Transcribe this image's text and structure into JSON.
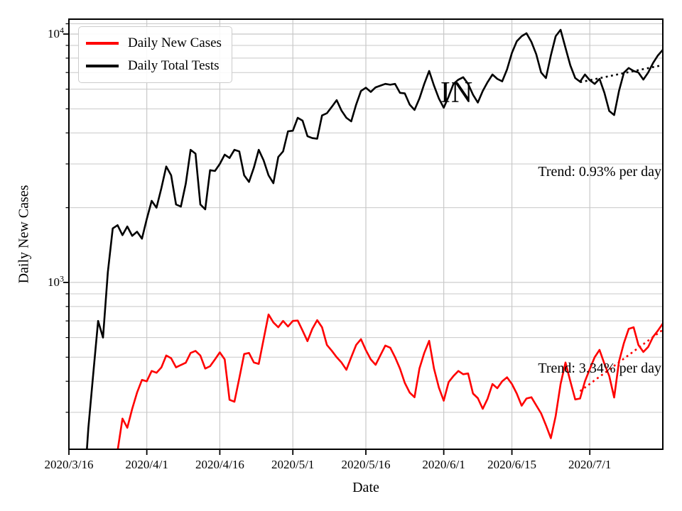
{
  "figure": {
    "state_label": "IN",
    "xlabel": "Date",
    "ylabel": "Daily New Cases",
    "background": "#ffffff",
    "legend": {
      "items": [
        {
          "label": "Daily New Cases",
          "color": "#ff0000"
        },
        {
          "label": "Daily Total Tests",
          "color": "#000000"
        }
      ]
    },
    "annotations": [
      {
        "id": "tests-trend",
        "text": "Trend: 0.93% per day"
      },
      {
        "id": "cases-trend",
        "text": "Trend: 3.34% per day"
      }
    ]
  },
  "chart_data": {
    "type": "line",
    "yscale": "log",
    "ylim": [
      213,
      11480
    ],
    "days_total": 122,
    "grid_color": "#c8c8c8",
    "x_ticks": [
      {
        "day": 0,
        "label": "2020/3/16"
      },
      {
        "day": 16,
        "label": "2020/4/1"
      },
      {
        "day": 31,
        "label": "2020/4/16"
      },
      {
        "day": 46,
        "label": "2020/5/1"
      },
      {
        "day": 61,
        "label": "2020/5/16"
      },
      {
        "day": 77,
        "label": "2020/6/1"
      },
      {
        "day": 91,
        "label": "2020/6/15"
      },
      {
        "day": 107,
        "label": "2020/7/1"
      }
    ],
    "y_major_ticks": [
      {
        "value": 1000,
        "base": "10",
        "exp": "3"
      },
      {
        "value": 10000,
        "base": "10",
        "exp": "4"
      }
    ],
    "y_minor_values": [
      300,
      400,
      500,
      600,
      700,
      800,
      900,
      2000,
      3000,
      4000,
      5000,
      6000,
      7000,
      8000,
      9000,
      11000
    ],
    "series": [
      {
        "name": "Daily New Cases",
        "color": "#ff0000",
        "start_day": 10,
        "values": [
          210,
          283,
          260,
          310,
          360,
          405,
          400,
          440,
          433,
          455,
          508,
          495,
          455,
          465,
          475,
          520,
          530,
          508,
          450,
          460,
          490,
          523,
          490,
          337,
          331,
          411,
          515,
          520,
          476,
          470,
          591,
          743,
          690,
          660,
          700,
          665,
          700,
          702,
          640,
          580,
          650,
          705,
          660,
          560,
          531,
          500,
          476,
          445,
          500,
          560,
          591,
          534,
          490,
          466,
          510,
          557,
          546,
          500,
          450,
          394,
          360,
          345,
          450,
          520,
          582,
          450,
          377,
          334,
          397,
          420,
          440,
          427,
          430,
          357,
          342,
          310,
          340,
          390,
          375,
          400,
          415,
          390,
          357,
          319,
          341,
          345,
          320,
          297,
          266,
          236,
          290,
          390,
          476,
          400,
          338,
          341,
          400,
          448,
          500,
          535,
          470,
          420,
          344,
          480,
          570,
          650,
          660,
          560,
          525,
          550,
          604,
          640,
          683
        ]
      },
      {
        "name": "Daily Total Tests",
        "color": "#000000",
        "start_day": 3,
        "values": [
          135,
          260,
          430,
          700,
          600,
          1100,
          1650,
          1700,
          1550,
          1680,
          1540,
          1600,
          1500,
          1800,
          2130,
          2000,
          2400,
          2930,
          2700,
          2060,
          2020,
          2500,
          3420,
          3300,
          2060,
          1970,
          2830,
          2810,
          3000,
          3270,
          3170,
          3420,
          3370,
          2700,
          2540,
          2900,
          3420,
          3100,
          2700,
          2510,
          3200,
          3370,
          4060,
          4080,
          4600,
          4480,
          3880,
          3810,
          3790,
          4700,
          4800,
          5090,
          5420,
          4920,
          4600,
          4450,
          5200,
          5900,
          6080,
          5850,
          6100,
          6200,
          6300,
          6250,
          6300,
          5800,
          5770,
          5200,
          4950,
          5500,
          6300,
          7100,
          6200,
          5500,
          5050,
          5600,
          6300,
          6550,
          6700,
          6300,
          5700,
          5300,
          5900,
          6400,
          6870,
          6600,
          6450,
          7200,
          8400,
          9350,
          9800,
          10070,
          9300,
          8300,
          7000,
          6650,
          8200,
          9800,
          10400,
          8800,
          7480,
          6650,
          6430,
          6870,
          6520,
          6300,
          6600,
          5800,
          4900,
          4720,
          5900,
          6990,
          7300,
          7100,
          7000,
          6560,
          7000,
          7650,
          8200,
          8640
        ]
      }
    ],
    "trend_lines": [
      {
        "name": "Daily Total Tests trend",
        "color": "#000000",
        "rate_per_day_pct": 0.93,
        "start_day": 105,
        "end_day": 122,
        "start_value": 6400,
        "end_value": 7500
      },
      {
        "name": "Daily New Cases trend",
        "color": "#ff0000",
        "rate_per_day_pct": 3.34,
        "start_day": 105,
        "end_day": 122,
        "start_value": 365,
        "end_value": 645
      }
    ]
  }
}
